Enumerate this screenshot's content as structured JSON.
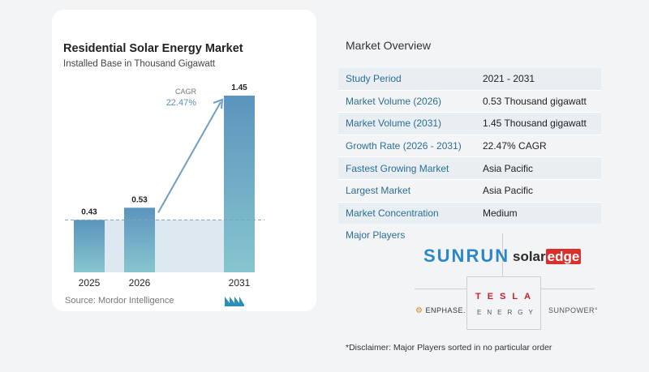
{
  "chart_data": {
    "type": "bar",
    "title": "Residential Solar Energy Market",
    "subtitle": "Installed Base in Thousand Gigawatt",
    "categories": [
      "2025",
      "2026",
      "2031"
    ],
    "values": [
      0.43,
      0.53,
      1.45
    ],
    "value_labels": [
      "0.43",
      "0.53",
      "1.45"
    ],
    "ylim": [
      0,
      1.45
    ],
    "cagr_label": "CAGR",
    "cagr_value": "22.47%",
    "source": "Source: Mordor Intelligence",
    "colors": {
      "bar_top": "#5b94bd",
      "bar_bottom": "#86c6cf",
      "arrow": "#6c9ec4",
      "band": "#dde8f1",
      "dashed": "#7fa3bf"
    }
  },
  "overview": {
    "title": "Market Overview",
    "rows": [
      {
        "label": "Study Period",
        "value": "2021 - 2031"
      },
      {
        "label": "Market Volume (2026)",
        "value": "0.53 Thousand gigawatt"
      },
      {
        "label": "Market Volume (2031)",
        "value": "1.45 Thousand gigawatt"
      },
      {
        "label": "Growth Rate (2026 - 2031)",
        "value": "22.47% CAGR"
      },
      {
        "label": "Fastest Growing Market",
        "value": "Asia Pacific"
      },
      {
        "label": "Largest Market",
        "value": "Asia Pacific"
      },
      {
        "label": "Market Concentration",
        "value": "Medium"
      }
    ]
  },
  "players": {
    "title": "Major Players",
    "sunrun": "SUNRUN",
    "solaredge_solar": "solar",
    "solaredge_edge": "edge",
    "tesla_top": "TESLA",
    "tesla_bottom": "ENERGY",
    "enphase": "ENPHASE.",
    "sunpower": "SUNPOWER°"
  },
  "disclaimer": "*Disclaimer: Major Players sorted in no particular order"
}
